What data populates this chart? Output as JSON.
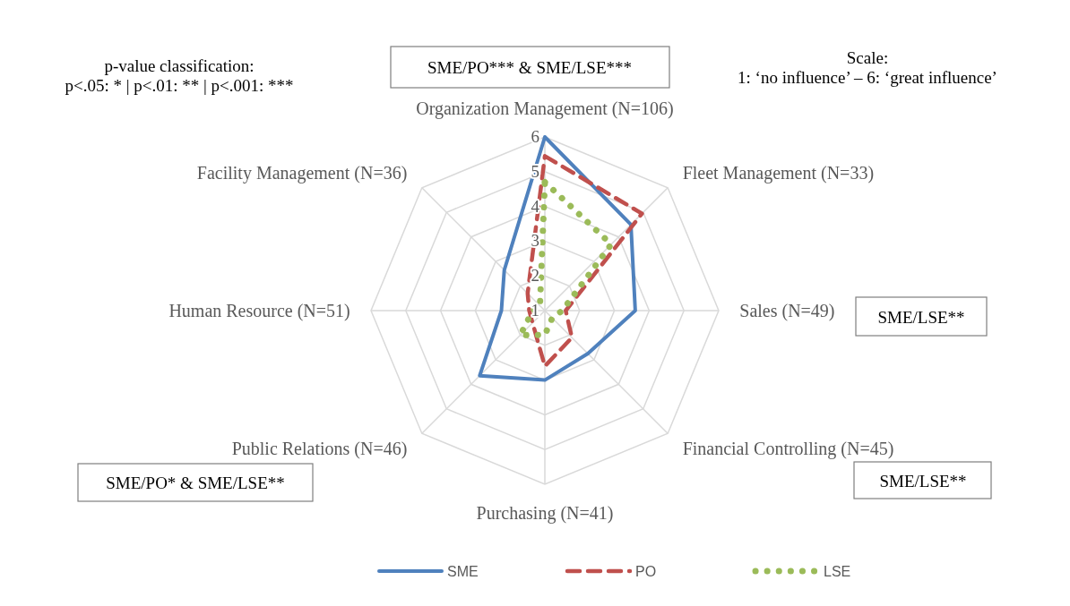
{
  "chart_data": {
    "type": "radar",
    "categories": [
      "Organization Management (N=106)",
      "Fleet Management (N=33)",
      "Sales (N=49)",
      "Financial Controlling (N=45)",
      "Purchasing (N=41)",
      "Public Relations (N=46)",
      "Human Resource (N=51)",
      "Facility Management (N=36)"
    ],
    "series": [
      {
        "name": "SME",
        "color": "#4f81bd",
        "line_style": "solid",
        "values": [
          6.0,
          4.5,
          3.6,
          2.75,
          3.0,
          3.65,
          2.25,
          2.65
        ]
      },
      {
        "name": "PO",
        "color": "#c0504d",
        "line_style": "dashed",
        "values": [
          5.45,
          4.95,
          1.6,
          2.1,
          2.6,
          1.5,
          1.45,
          1.7
        ]
      },
      {
        "name": "LSE",
        "color": "#9bbb59",
        "line_style": "dotted",
        "values": [
          4.7,
          3.7,
          1.5,
          1.3,
          1.7,
          2.0,
          1.35,
          1.2
        ]
      }
    ],
    "ylim": [
      1,
      6
    ],
    "yticks": [
      1,
      2,
      3,
      4,
      5,
      6
    ],
    "grid": true,
    "legend": "bottom",
    "annotations": [
      "SME/PO*** & SME/LSE***",
      "SME/LSE**",
      "SME/LSE**",
      "SME/PO* & SME/LSE**",
      "p-value classification:\np<.05: * | p<.01: ** | p<.001: ***",
      "Scale:\n1: ‘no influence’ – 6: ‘great influence’"
    ]
  }
}
